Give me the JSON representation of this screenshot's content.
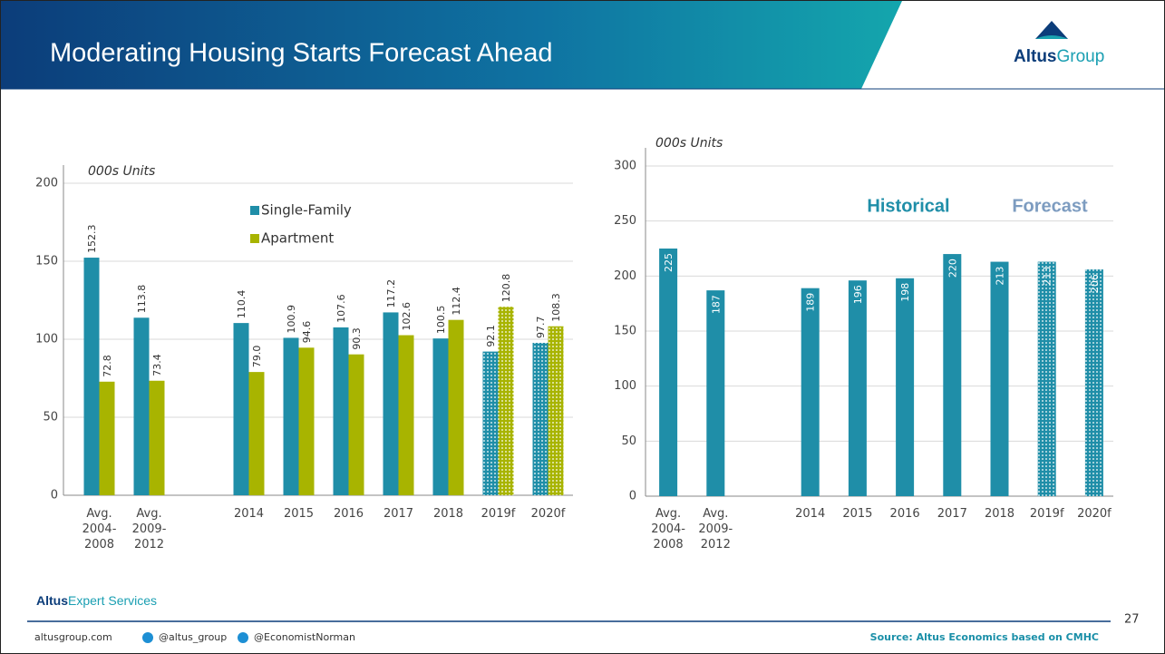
{
  "header": {
    "title": "Moderating Housing Starts Forecast Ahead",
    "logo": [
      "Altus",
      "Group"
    ]
  },
  "chart_data": [
    {
      "type": "bar",
      "axis_label": "000s Units",
      "categories": [
        "Avg. 2004-2008",
        "Avg. 2009-2012",
        null,
        "2014",
        "2015",
        "2016",
        "2017",
        "2018",
        "2019f",
        "2020f"
      ],
      "fill_styles": [
        "solid",
        "solid",
        "solid",
        "solid",
        "solid",
        "solid",
        "solid",
        "solid",
        "dotted",
        "dotted"
      ],
      "series": [
        {
          "name": "Single-Family",
          "color": "#1f8ea8",
          "values": [
            152.3,
            113.8,
            null,
            110.4,
            100.9,
            107.6,
            117.2,
            100.5,
            92.1,
            97.7
          ],
          "value_labels": [
            "152.3",
            "113.8",
            null,
            "110.4",
            "100.9",
            "107.6",
            "117.2",
            "100.5",
            "92.1",
            "97.7"
          ]
        },
        {
          "name": "Apartment",
          "color": "#a8b400",
          "values": [
            72.8,
            73.4,
            null,
            79.0,
            94.6,
            90.3,
            102.6,
            112.4,
            120.8,
            108.3
          ],
          "value_labels": [
            "72.8",
            "73.4",
            null,
            "79.0",
            "94.6",
            "90.3",
            "102.6",
            "112.4",
            "120.8",
            "108.3"
          ]
        }
      ],
      "ylim": [
        0,
        200
      ],
      "yticks": [
        0,
        50,
        100,
        150,
        200
      ],
      "grid": true,
      "legend": "top"
    },
    {
      "type": "bar",
      "axis_label": "000s Units",
      "categories": [
        "Avg. 2004-2008",
        "Avg. 2009-2012",
        null,
        "2014",
        "2015",
        "2016",
        "2017",
        "2018",
        "2019f",
        "2020f"
      ],
      "fill_styles": [
        "solid",
        "solid",
        "solid",
        "solid",
        "solid",
        "solid",
        "solid",
        "solid",
        "dotted",
        "dotted"
      ],
      "color": "#1f8ea8",
      "values": [
        225,
        187,
        null,
        189,
        196,
        198,
        220,
        213,
        213,
        206
      ],
      "value_labels": [
        "225",
        "187",
        null,
        "189",
        "196",
        "198",
        "220",
        "213",
        "213",
        "206"
      ],
      "annotations": [
        {
          "text": "Historical",
          "color": "#1f8ea8"
        },
        {
          "text": "Forecast",
          "color": "#7d9cc0"
        }
      ],
      "ylim": [
        0,
        300
      ],
      "yticks": [
        0,
        50,
        100,
        150,
        200,
        250,
        300
      ],
      "grid": true
    }
  ],
  "footer": {
    "brand": [
      "Altus",
      "Expert Services"
    ],
    "website": "altusgroup.com",
    "twitter": [
      "@altus_group",
      "@EconomistNorman"
    ],
    "source": "Source: Altus Economics based on CMHC",
    "page_number": "27"
  }
}
